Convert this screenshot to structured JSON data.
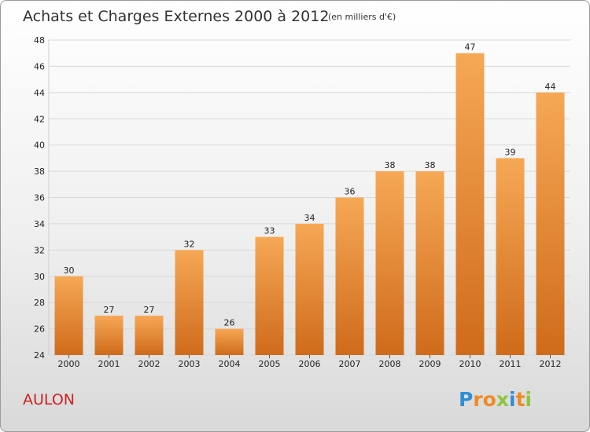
{
  "chart_data": {
    "type": "bar",
    "title": "Achats et Charges Externes 2000 à 2012",
    "subtitle": "(en milliers d'€)",
    "categories": [
      "2000",
      "2001",
      "2002",
      "2003",
      "2004",
      "2005",
      "2006",
      "2007",
      "2008",
      "2009",
      "2010",
      "2011",
      "2012"
    ],
    "values": [
      30,
      27,
      27,
      32,
      26,
      33,
      34,
      36,
      38,
      38,
      47,
      39,
      44
    ],
    "ylim": [
      24,
      48
    ],
    "yticks": [
      24,
      26,
      28,
      30,
      32,
      34,
      36,
      38,
      40,
      42,
      44,
      46,
      48
    ],
    "grid": true,
    "legend": "none"
  },
  "footer": {
    "commune": "AULON",
    "logo": {
      "letters": [
        "P",
        "r",
        "o",
        "x",
        "i",
        "t",
        "i"
      ]
    }
  },
  "colors": {
    "bar_top": "#f6a855",
    "bar_bottom": "#cf6b1b",
    "grid": "#d8d8d8",
    "commune": "#cc2222",
    "logo": [
      "#2f8fd6",
      "#f08a24",
      "#f08a24",
      "#8cc63f",
      "#2f8fd6",
      "#f08a24",
      "#8cc63f"
    ]
  }
}
